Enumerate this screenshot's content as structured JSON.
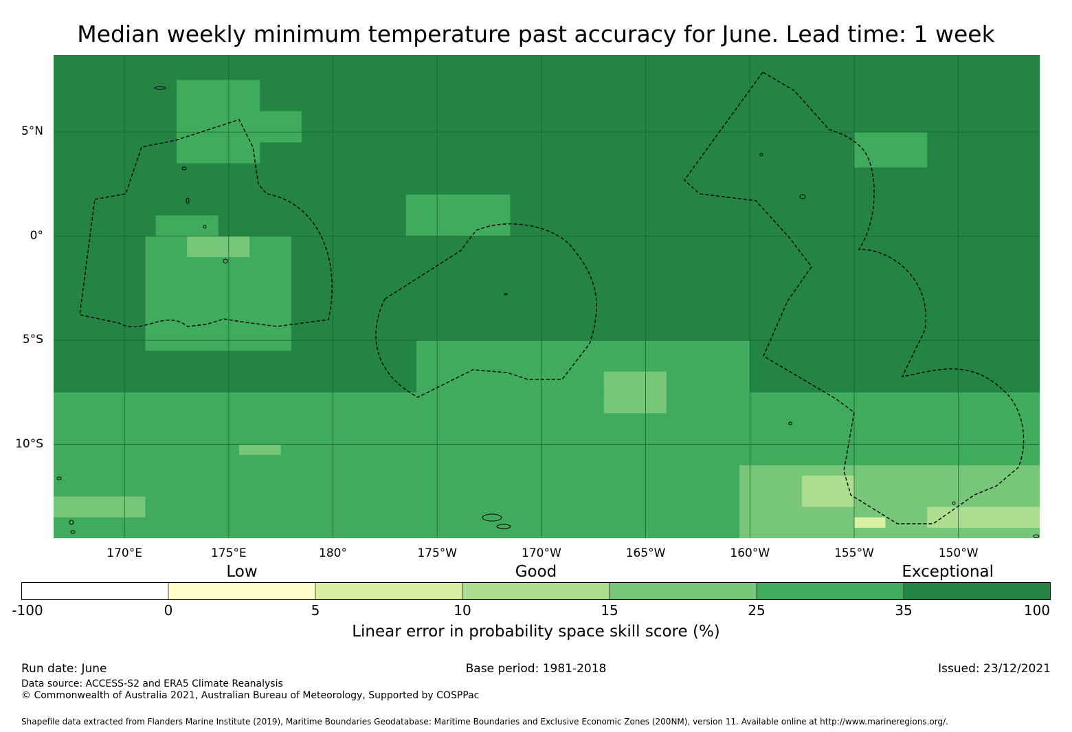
{
  "title": "Median weekly minimum temperature past accuracy for June. Lead time: 1 week",
  "map": {
    "lon_range": [
      166.6,
      213.9
    ],
    "lat_range": [
      -14.5,
      8.7
    ],
    "lat_ticks": [
      {
        "value": 5,
        "label": "5°N"
      },
      {
        "value": 0,
        "label": "0°"
      },
      {
        "value": -5,
        "label": "5°S"
      },
      {
        "value": -10,
        "label": "10°S"
      }
    ],
    "lon_ticks": [
      {
        "value": 170,
        "label": "170°E"
      },
      {
        "value": 175,
        "label": "175°E"
      },
      {
        "value": 180,
        "label": "180°"
      },
      {
        "value": 185,
        "label": "175°W"
      },
      {
        "value": 190,
        "label": "170°W"
      },
      {
        "value": 195,
        "label": "165°W"
      },
      {
        "value": 200,
        "label": "160°W"
      },
      {
        "value": 205,
        "label": "155°W"
      },
      {
        "value": 210,
        "label": "150°W"
      }
    ],
    "skill_regions": [
      {
        "category": 35,
        "lon": [
          166.6,
          213.9
        ],
        "lat": [
          -14.5,
          8.7
        ]
      },
      {
        "category": 25,
        "lon": [
          172.5,
          176.5
        ],
        "lat": [
          3.5,
          7.5
        ]
      },
      {
        "category": 25,
        "lon": [
          176.0,
          178.5
        ],
        "lat": [
          4.5,
          6.0
        ]
      },
      {
        "category": 25,
        "lon": [
          171.0,
          178.0
        ],
        "lat": [
          -5.5,
          0.0
        ]
      },
      {
        "category": 25,
        "lon": [
          183.5,
          188.5
        ],
        "lat": [
          0.0,
          2.0
        ]
      },
      {
        "category": 25,
        "lon": [
          171.5,
          174.5
        ],
        "lat": [
          -1.0,
          1.0
        ]
      },
      {
        "category": 25,
        "lon": [
          184.0,
          200.0
        ],
        "lat": [
          -7.5,
          -5.0
        ]
      },
      {
        "category": 25,
        "lon": [
          166.6,
          213.9
        ],
        "lat": [
          -14.5,
          -7.5
        ]
      },
      {
        "category": 25,
        "lon": [
          205.0,
          208.5
        ],
        "lat": [
          3.3,
          5.0
        ]
      },
      {
        "category": 15,
        "lon": [
          173.0,
          176.0
        ],
        "lat": [
          -1.0,
          0.0
        ]
      },
      {
        "category": 15,
        "lon": [
          166.6,
          171.0
        ],
        "lat": [
          -13.5,
          -12.5
        ]
      },
      {
        "category": 15,
        "lon": [
          193.0,
          196.0
        ],
        "lat": [
          -8.5,
          -6.5
        ]
      },
      {
        "category": 15,
        "lon": [
          199.5,
          213.9
        ],
        "lat": [
          -14.5,
          -11.0
        ]
      },
      {
        "category": 15,
        "lon": [
          175.5,
          177.5
        ],
        "lat": [
          -10.5,
          -10.0
        ]
      },
      {
        "category": 10,
        "lon": [
          202.5,
          205.0
        ],
        "lat": [
          -13.0,
          -11.5
        ]
      },
      {
        "category": 10,
        "lon": [
          208.5,
          213.9
        ],
        "lat": [
          -14.0,
          -13.0
        ]
      },
      {
        "category": 5,
        "lon": [
          205.0,
          206.5
        ],
        "lat": [
          -14.0,
          -13.5
        ]
      }
    ]
  },
  "colorbar": {
    "categories": [
      {
        "label": "Low",
        "at": 10
      },
      {
        "label": "Good",
        "at": 25
      },
      {
        "label": "Exceptional",
        "at": 100
      }
    ],
    "bins": [
      {
        "from": -100,
        "to": 0,
        "color": "#ffffff"
      },
      {
        "from": 0,
        "to": 5,
        "color": "#ffffcc"
      },
      {
        "from": 5,
        "to": 10,
        "color": "#d9f0a3"
      },
      {
        "from": 10,
        "to": 15,
        "color": "#addd8e"
      },
      {
        "from": 15,
        "to": 25,
        "color": "#78c679"
      },
      {
        "from": 25,
        "to": 35,
        "color": "#41ab5d"
      },
      {
        "from": 35,
        "to": 100,
        "color": "#238443"
      }
    ],
    "ticks": [
      "-100",
      "0",
      "5",
      "10",
      "15",
      "25",
      "35",
      "100"
    ],
    "label": "Linear error in probability space skill score (%)"
  },
  "footer": {
    "run_date": "Run date: June",
    "base_period": "Base period: 1981-2018",
    "issued": "Issued: 23/12/2021",
    "data_source": "Data source: ACCESS-S2 and ERA5 Climate Reanalysis",
    "copyright": "© Commonwealth of Australia 2021, Australian Bureau of Meteorology, Supported by COSPPac",
    "shapefile": "Shapefile data extracted from Flanders Marine Institute (2019), Maritime Boundaries Geodatabase: Maritime Boundaries and Exclusive Economic Zones (200NM), version 11. Available online at http://www.marineregions.org/."
  }
}
